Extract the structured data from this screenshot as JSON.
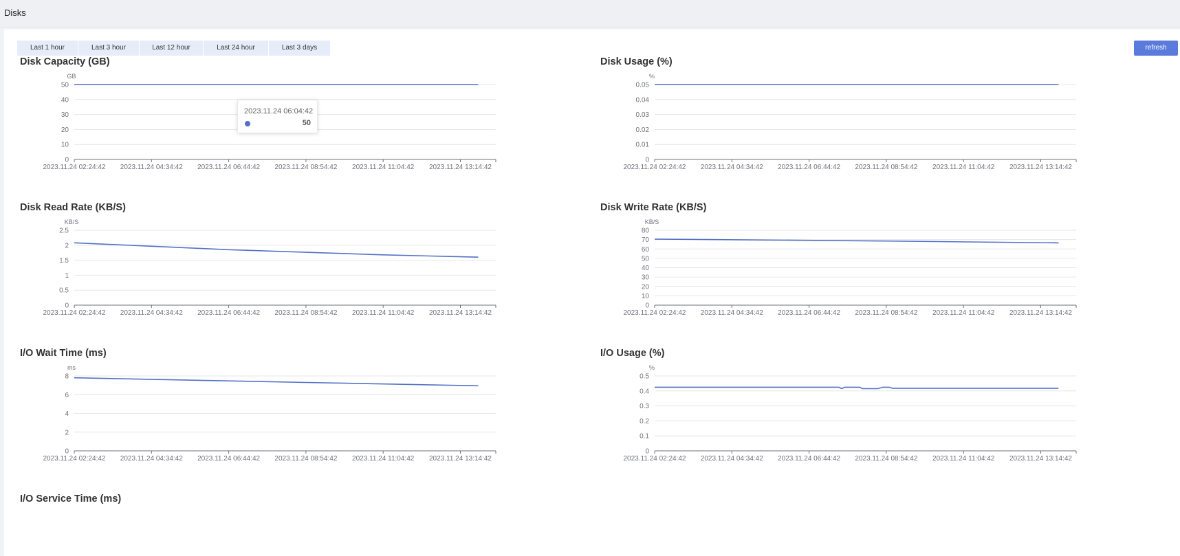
{
  "page": {
    "title": "Disks"
  },
  "toolbar": {
    "ranges": [
      {
        "label": "Last 1 hour",
        "active": false
      },
      {
        "label": "Last 3 hour",
        "active": false
      },
      {
        "label": "Last 12 hour",
        "active": true
      },
      {
        "label": "Last 24 hour",
        "active": false
      },
      {
        "label": "Last 3 days",
        "active": false
      }
    ],
    "refresh_label": "refresh"
  },
  "colors": {
    "accent": "#5b7bdc",
    "series": "#5470c6",
    "grid": "#e6e6e6",
    "axis": "#6e7079"
  },
  "x_ticks": [
    "2023.11.24 02:24:42",
    "2023.11.24 04:34:42",
    "2023.11.24 06:44:42",
    "2023.11.24 08:54:42",
    "2023.11.24 11:04:42",
    "2023.11.24 13:14:42"
  ],
  "tooltip": {
    "time": "2023.11.24 06:04:42",
    "value": "50"
  },
  "chart_data": [
    {
      "type": "line",
      "title": "Disk Capacity (GB)",
      "ylabel": "GB",
      "yticks": [
        "0",
        "10",
        "20",
        "30",
        "40",
        "50"
      ],
      "ylim": [
        0,
        50
      ],
      "x": [
        "2023.11.24 02:24:42",
        "2023.11.24 13:44:42"
      ],
      "series": [
        {
          "values": [
            50,
            50
          ]
        }
      ]
    },
    {
      "type": "line",
      "title": "Disk Usage (%)",
      "ylabel": "%",
      "yticks": [
        "0",
        "0.01",
        "0.02",
        "0.03",
        "0.04",
        "0.05"
      ],
      "ylim": [
        0,
        0.05
      ],
      "x": [
        "2023.11.24 02:24:42",
        "2023.11.24 13:44:42"
      ],
      "series": [
        {
          "values": [
            0.05,
            0.05
          ]
        }
      ]
    },
    {
      "type": "line",
      "title": "Disk Read Rate (KB/S)",
      "ylabel": "KB/S",
      "yticks": [
        "0",
        "0.5",
        "1",
        "1.5",
        "2",
        "2.5"
      ],
      "ylim": [
        0,
        2.5
      ],
      "x": [
        "2023.11.24 02:24:42",
        "2023.11.24 06:44:42",
        "2023.11.24 11:04:42",
        "2023.11.24 13:44:42"
      ],
      "series": [
        {
          "values": [
            2.08,
            1.85,
            1.68,
            1.6
          ]
        }
      ]
    },
    {
      "type": "line",
      "title": "Disk Write Rate (KB/S)",
      "ylabel": "KB/S",
      "yticks": [
        "0",
        "10",
        "20",
        "30",
        "40",
        "50",
        "60",
        "70",
        "80"
      ],
      "ylim": [
        0,
        80
      ],
      "x": [
        "2023.11.24 02:24:42",
        "2023.11.24 08:54:42",
        "2023.11.24 13:44:42"
      ],
      "series": [
        {
          "values": [
            70.5,
            68.5,
            66.5
          ]
        }
      ]
    },
    {
      "type": "line",
      "title": "I/O Wait Time (ms)",
      "ylabel": "ms",
      "yticks": [
        "0",
        "2",
        "4",
        "6",
        "8"
      ],
      "ylim": [
        0,
        8
      ],
      "x": [
        "2023.11.24 02:24:42",
        "2023.11.24 08:54:42",
        "2023.11.24 13:44:42"
      ],
      "series": [
        {
          "values": [
            7.8,
            7.3,
            6.95
          ]
        }
      ]
    },
    {
      "type": "line",
      "title": "I/O Usage (%)",
      "ylabel": "%",
      "yticks": [
        "0",
        "0.1",
        "0.2",
        "0.3",
        "0.4",
        "0.5"
      ],
      "ylim": [
        0,
        0.5
      ],
      "x": [
        "2023.11.24 02:24:42",
        "2023.11.24 07:34:42",
        "2023.11.24 07:39:42",
        "2023.11.24 07:44:42",
        "2023.11.24 08:09:42",
        "2023.11.24 08:14:42",
        "2023.11.24 08:39:42",
        "2023.11.24 08:49:42",
        "2023.11.24 08:59:42",
        "2023.11.24 09:04:42",
        "2023.11.24 13:44:42"
      ],
      "series": [
        {
          "values": [
            0.425,
            0.425,
            0.415,
            0.425,
            0.425,
            0.415,
            0.415,
            0.425,
            0.425,
            0.418,
            0.418
          ]
        }
      ]
    },
    {
      "type": "line",
      "title": "I/O Service Time (ms)"
    }
  ]
}
